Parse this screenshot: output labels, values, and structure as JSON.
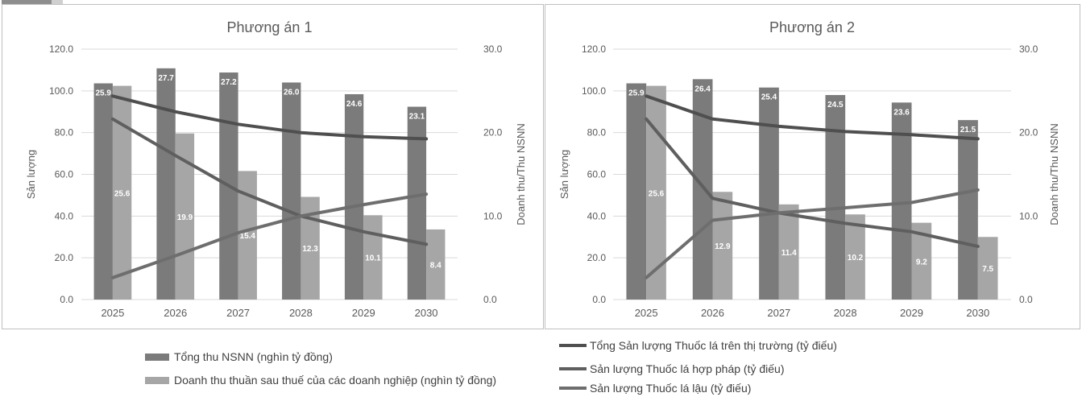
{
  "colors": {
    "tong_thu": "#7b7b7b",
    "doanh_thu": "#a6a6a6",
    "tong_sl": "#4f4f4f",
    "hop_phap": "#5f5f5f",
    "lau": "#6e6e6e"
  },
  "legend": {
    "bars": [
      {
        "label": "Tổng thu NSNN (nghìn tỷ đồng)",
        "color_key": "tong_thu"
      },
      {
        "label": "Doanh thu thuần sau thuế của các doanh nghiệp (nghìn tỷ đồng)",
        "color_key": "doanh_thu"
      }
    ],
    "lines": [
      {
        "label": "Tổng Sản lượng Thuốc lá trên thị trường (tỷ điếu)",
        "color_key": "tong_sl"
      },
      {
        "label": "Sản lượng Thuốc lá hợp pháp (tỷ điếu)",
        "color_key": "hop_phap"
      },
      {
        "label": "Sản lượng Thuốc lá lậu (tỷ điếu)",
        "color_key": "lau"
      }
    ]
  },
  "chart_data": [
    {
      "type": "bar",
      "title": "Phương án 1",
      "ylabel": "Sản lượng",
      "y2label": "Doanh thu/Thu NSNN",
      "categories": [
        "2025",
        "2026",
        "2027",
        "2028",
        "2029",
        "2030"
      ],
      "ylim": [
        0,
        120
      ],
      "y2lim": [
        0,
        30
      ],
      "yticks": [
        "0.0",
        "20.0",
        "40.0",
        "60.0",
        "80.0",
        "100.0",
        "120.0"
      ],
      "y2ticks": [
        "0.0",
        "10.0",
        "20.0",
        "30.0"
      ],
      "grid": true,
      "bar_series": [
        {
          "key": "tong_thu",
          "axis": "y2",
          "values": [
            25.9,
            27.7,
            27.2,
            26.0,
            24.6,
            23.1
          ],
          "labels": [
            "25.9",
            "27.7",
            "27.2",
            "26.0",
            "24.6",
            "23.1"
          ]
        },
        {
          "key": "doanh_thu",
          "axis": "y2",
          "values": [
            25.6,
            19.9,
            15.4,
            12.3,
            10.1,
            8.4
          ],
          "labels": [
            "25.6",
            "19.9",
            "15.4",
            "12.3",
            "10.1",
            "8.4"
          ]
        }
      ],
      "line_series": [
        {
          "key": "tong_sl",
          "axis": "y",
          "values": [
            97.5,
            90.0,
            84.0,
            80.0,
            78.0,
            77.0
          ]
        },
        {
          "key": "hop_phap",
          "axis": "y",
          "values": [
            86.5,
            69.0,
            52.0,
            40.0,
            32.5,
            26.5
          ]
        },
        {
          "key": "lau",
          "axis": "y",
          "values": [
            10.5,
            21.0,
            32.0,
            40.0,
            45.5,
            50.5
          ]
        }
      ]
    },
    {
      "type": "bar",
      "title": "Phương án 2",
      "ylabel": "Sản lượng",
      "y2label": "Doanh thu/Thu NSNN",
      "categories": [
        "2025",
        "2026",
        "2027",
        "2028",
        "2029",
        "2030"
      ],
      "ylim": [
        0,
        120
      ],
      "y2lim": [
        0,
        30
      ],
      "yticks": [
        "0.0",
        "20.0",
        "40.0",
        "60.0",
        "80.0",
        "100.0",
        "120.0"
      ],
      "y2ticks": [
        "0.0",
        "10.0",
        "20.0",
        "30.0"
      ],
      "grid": true,
      "bar_series": [
        {
          "key": "tong_thu",
          "axis": "y2",
          "values": [
            25.9,
            26.4,
            25.4,
            24.5,
            23.6,
            21.5
          ],
          "labels": [
            "25.9",
            "26.4",
            "25.4",
            "24.5",
            "23.6",
            "21.5"
          ]
        },
        {
          "key": "doanh_thu",
          "axis": "y2",
          "values": [
            25.6,
            12.9,
            11.4,
            10.2,
            9.2,
            7.5
          ],
          "labels": [
            "25.6",
            "12.9",
            "11.4",
            "10.2",
            "9.2",
            "7.5"
          ]
        }
      ],
      "line_series": [
        {
          "key": "tong_sl",
          "axis": "y",
          "values": [
            97.5,
            86.5,
            83.0,
            80.5,
            79.0,
            77.0
          ]
        },
        {
          "key": "hop_phap",
          "axis": "y",
          "values": [
            86.5,
            48.5,
            41.5,
            36.5,
            32.5,
            25.5
          ]
        },
        {
          "key": "lau",
          "axis": "y",
          "values": [
            10.5,
            38.0,
            41.5,
            44.0,
            46.5,
            52.5
          ]
        }
      ]
    }
  ]
}
